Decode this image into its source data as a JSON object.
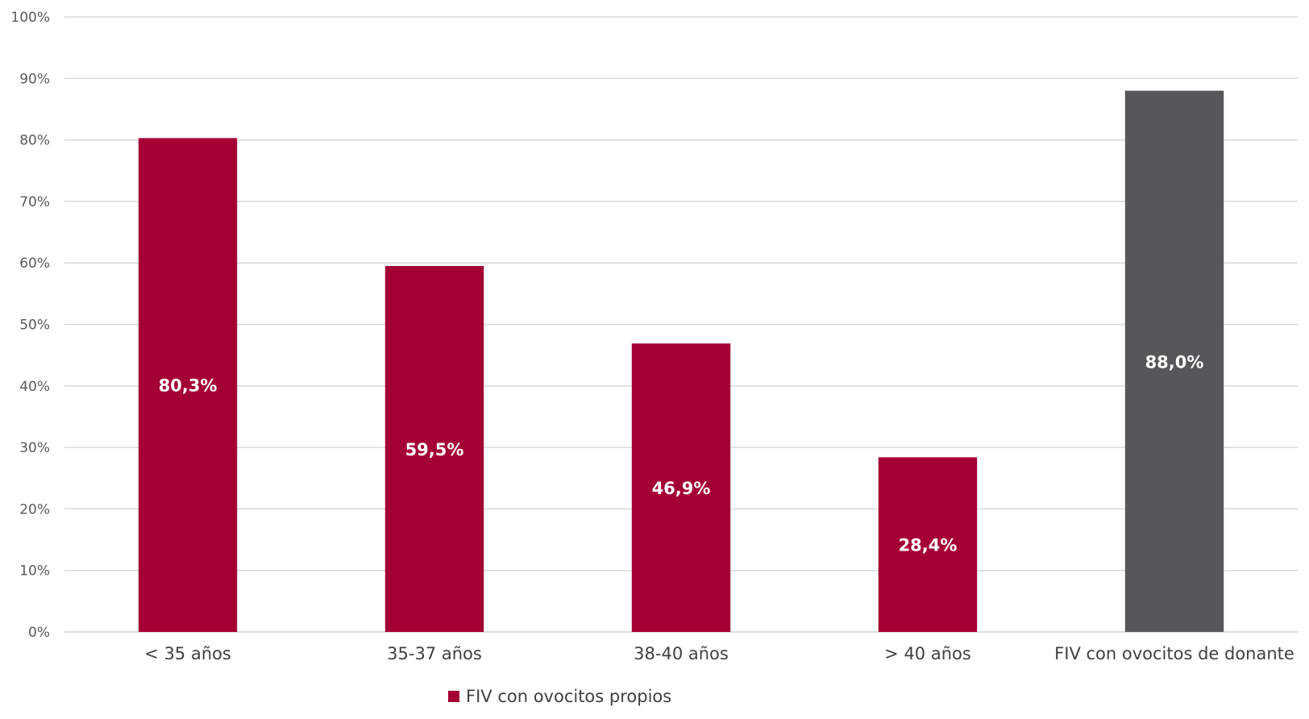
{
  "chart_data": {
    "type": "bar",
    "categories": [
      "< 35 años",
      "35-37 años",
      "38-40 años",
      "> 40 años",
      "FIV con ovocitos de donante"
    ],
    "values": [
      80.3,
      59.5,
      46.9,
      28.4,
      88.0
    ],
    "data_labels": [
      "80,3%",
      "59,5%",
      "46,9%",
      "28,4%",
      "88,0%"
    ],
    "bar_colors": [
      "#A50034",
      "#A50034",
      "#A50034",
      "#A50034",
      "#57575A"
    ],
    "ylim": [
      0,
      100
    ],
    "yticks": [
      0,
      10,
      20,
      30,
      40,
      50,
      60,
      70,
      80,
      90,
      100
    ],
    "ytick_labels": [
      "0%",
      "10%",
      "20%",
      "30%",
      "40%",
      "50%",
      "60%",
      "70%",
      "80%",
      "90%",
      "100%"
    ],
    "grid": true,
    "legend": {
      "position": "bottom",
      "entries": [
        {
          "name": "FIV con ovocitos propios",
          "color": "#A50034"
        }
      ]
    },
    "title": "",
    "xlabel": "",
    "ylabel": ""
  }
}
